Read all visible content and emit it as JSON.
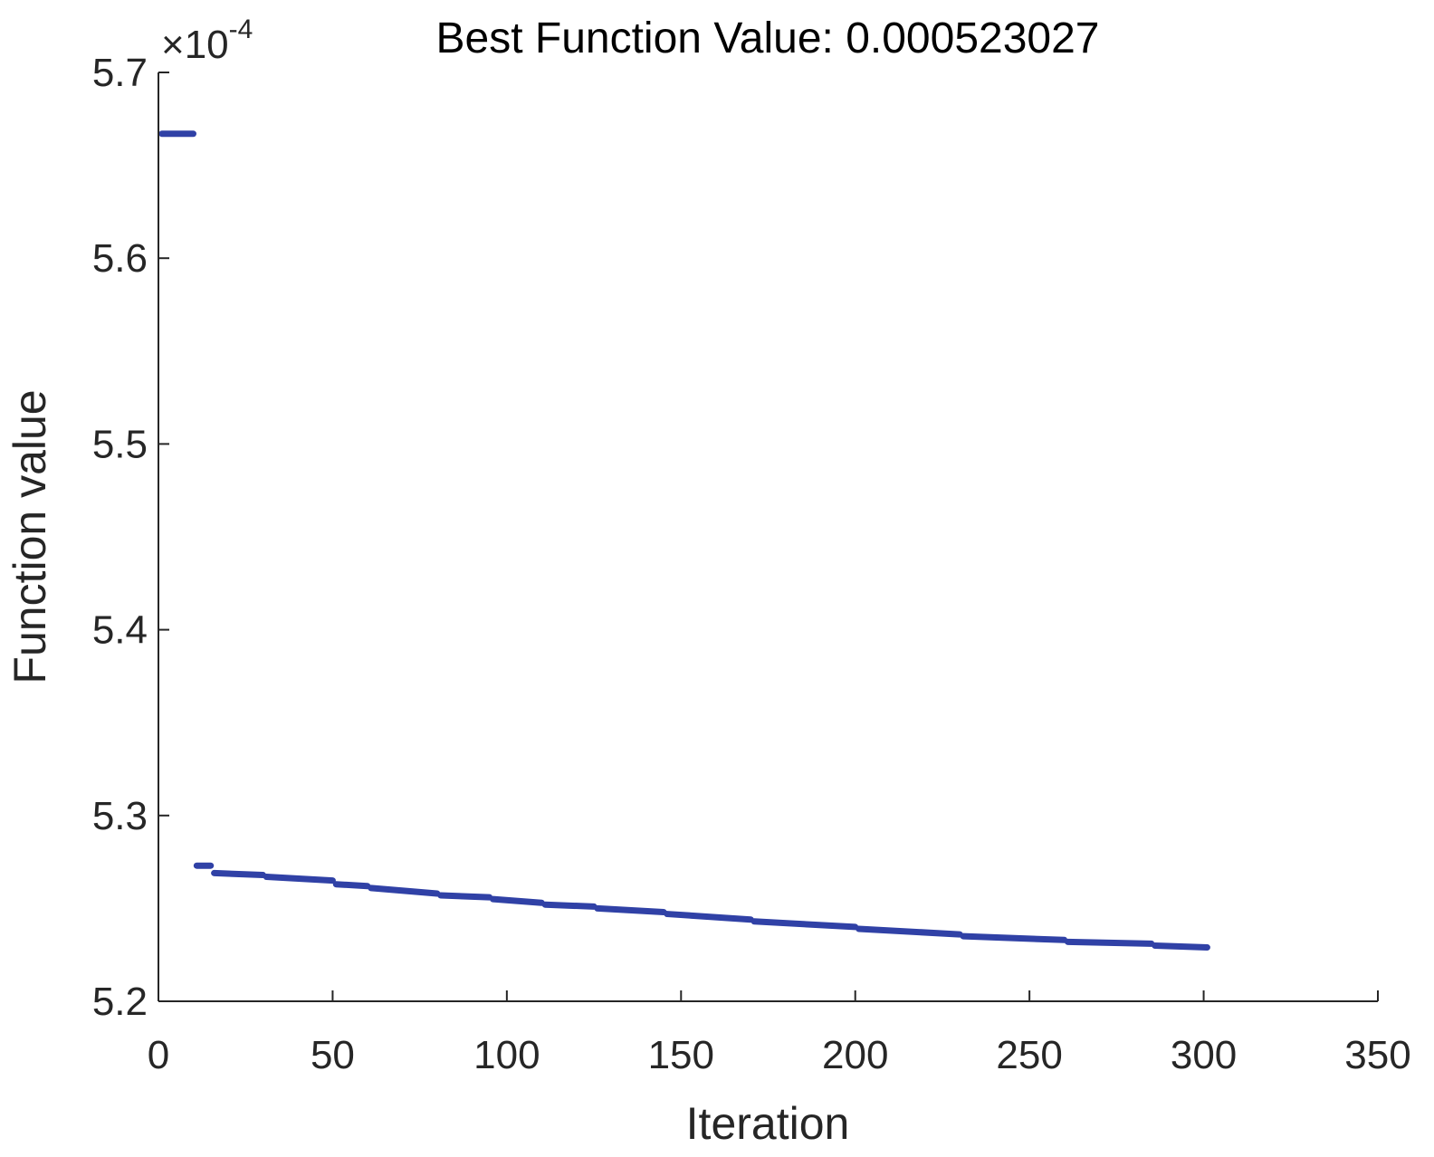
{
  "chart_data": {
    "type": "line",
    "title": "Best Function Value: 0.000523027",
    "xlabel": "Iteration",
    "ylabel": "Function value",
    "y_scale_exponent": {
      "base": "×10",
      "power": "-4"
    },
    "xlim": [
      0,
      350
    ],
    "ylim": [
      5.2,
      5.7
    ],
    "xticks": [
      0,
      50,
      100,
      150,
      200,
      250,
      300,
      350
    ],
    "xtick_labels": [
      "0",
      "50",
      "100",
      "150",
      "200",
      "250",
      "300",
      "350"
    ],
    "yticks": [
      5.2,
      5.3,
      5.4,
      5.5,
      5.6,
      5.7
    ],
    "ytick_labels": [
      "5.2",
      "5.3",
      "5.4",
      "5.5",
      "5.6",
      "5.7"
    ],
    "grid": false,
    "legend": "none",
    "series": [
      {
        "color": "#3041a6",
        "marker": "point",
        "x": [
          1,
          10,
          11,
          15,
          16,
          30,
          31,
          50,
          51,
          60,
          61,
          80,
          81,
          95,
          96,
          110,
          111,
          125,
          126,
          145,
          146,
          170,
          171,
          200,
          201,
          230,
          231,
          260,
          261,
          285,
          286,
          301
        ],
        "y": [
          5.667,
          5.667,
          5.273,
          5.273,
          5.269,
          5.268,
          5.267,
          5.265,
          5.263,
          5.262,
          5.261,
          5.258,
          5.257,
          5.256,
          5.255,
          5.253,
          5.252,
          5.251,
          5.25,
          5.248,
          5.247,
          5.244,
          5.243,
          5.24,
          5.239,
          5.236,
          5.235,
          5.233,
          5.232,
          5.231,
          5.23,
          5.229
        ]
      }
    ]
  }
}
